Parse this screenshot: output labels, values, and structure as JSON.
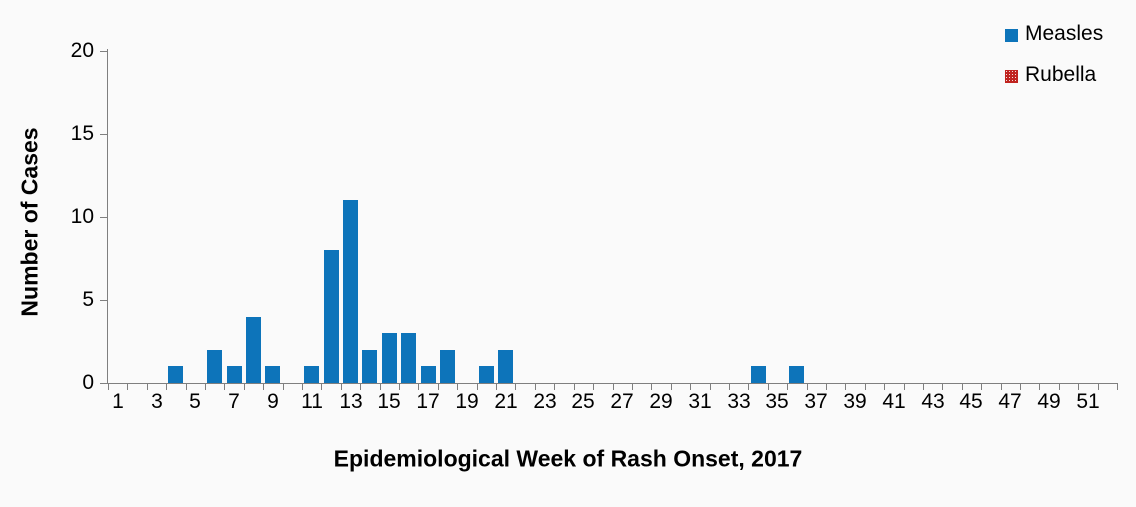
{
  "chart_data": {
    "type": "bar",
    "title": "",
    "xlabel": "Epidemiological Week of Rash Onset, 2017",
    "ylabel": "Number of Cases",
    "categories": [
      1,
      2,
      3,
      4,
      5,
      6,
      7,
      8,
      9,
      10,
      11,
      12,
      13,
      14,
      15,
      16,
      17,
      18,
      19,
      20,
      21,
      22,
      23,
      24,
      25,
      26,
      27,
      28,
      29,
      30,
      31,
      32,
      33,
      34,
      35,
      36,
      37,
      38,
      39,
      40,
      41,
      42,
      43,
      44,
      45,
      46,
      47,
      48,
      49,
      50,
      51,
      52
    ],
    "series": [
      {
        "name": "Measles",
        "color": "#0d74ba",
        "fill_pattern": "solid",
        "values": [
          0,
          0,
          0,
          1,
          0,
          2,
          1,
          4,
          1,
          0,
          1,
          8,
          11,
          2,
          3,
          3,
          1,
          2,
          0,
          1,
          2,
          0,
          0,
          0,
          0,
          0,
          0,
          0,
          0,
          0,
          0,
          0,
          0,
          1,
          0,
          1,
          0,
          0,
          0,
          0,
          0,
          0,
          0,
          0,
          0,
          0,
          0,
          0,
          0,
          0,
          0,
          0
        ]
      },
      {
        "name": "Rubella",
        "color": "#c0231f",
        "fill_pattern": "dotted",
        "values": [
          0,
          0,
          0,
          0,
          0,
          0,
          0,
          0,
          0,
          0,
          0,
          0,
          0,
          0,
          0,
          0,
          0,
          0,
          0,
          0,
          0,
          0,
          0,
          0,
          0,
          0,
          0,
          0,
          0,
          0,
          0,
          0,
          0,
          0,
          0,
          0,
          0,
          0,
          0,
          0,
          0,
          0,
          0,
          0,
          0,
          0,
          0,
          0,
          0,
          0,
          0,
          0
        ]
      }
    ],
    "ylim": [
      0,
      20
    ],
    "yticks": [
      0,
      5,
      10,
      15,
      20
    ],
    "xticks_labeled": [
      1,
      3,
      5,
      7,
      9,
      11,
      13,
      15,
      17,
      19,
      21,
      23,
      25,
      27,
      29,
      31,
      33,
      35,
      37,
      39,
      41,
      43,
      45,
      47,
      49,
      51
    ],
    "grid": false,
    "legend_position": "top-right",
    "axis_color": "#7f7f7f",
    "text_color": "#000000",
    "background_color": "#fafafa"
  }
}
